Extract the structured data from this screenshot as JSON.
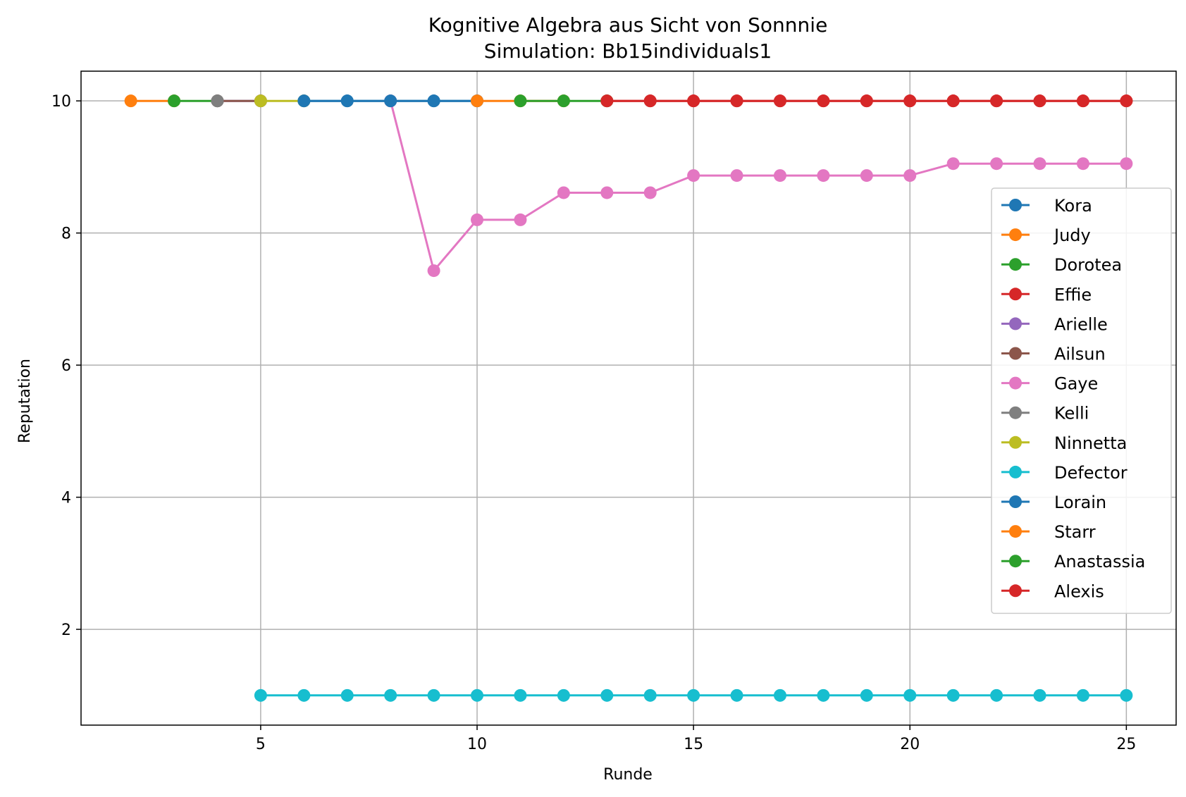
{
  "chart_data": {
    "type": "line",
    "title": "Kognitive Algebra aus Sicht von Sonnnie",
    "subtitle": "Simulation: Bb15individuals1",
    "xlabel": "Runde",
    "ylabel": "Reputation",
    "xlim": [
      0.85,
      26.15
    ],
    "ylim": [
      0.55,
      10.45
    ],
    "xticks": [
      5,
      10,
      15,
      20,
      25
    ],
    "yticks": [
      2,
      4,
      6,
      8,
      10
    ],
    "grid": true,
    "legend_position": "center-right",
    "series": [
      {
        "name": "Kora",
        "color": "#1f77b4",
        "x": [
          6,
          7,
          8,
          9,
          10
        ],
        "y": [
          10,
          10,
          10,
          10,
          10
        ]
      },
      {
        "name": "Judy",
        "color": "#ff7f0e",
        "x": [
          2,
          3
        ],
        "y": [
          10,
          10
        ]
      },
      {
        "name": "Dorotea",
        "color": "#2ca02c",
        "x": [
          3,
          4
        ],
        "y": [
          10,
          10
        ]
      },
      {
        "name": "Effie",
        "color": "#d62728",
        "x": [
          13,
          14,
          15,
          16,
          17,
          18,
          19,
          20,
          21,
          22,
          23,
          24,
          25
        ],
        "y": [
          10,
          10,
          10,
          10,
          10,
          10,
          10,
          10,
          10,
          10,
          10,
          10,
          10
        ]
      },
      {
        "name": "Arielle",
        "color": "#9467bd",
        "x": [
          4,
          5
        ],
        "y": [
          10,
          10
        ]
      },
      {
        "name": "Ailsun",
        "color": "#8c564b",
        "x": [
          4,
          5
        ],
        "y": [
          10,
          10
        ]
      },
      {
        "name": "Gaye",
        "color": "#e377c2",
        "x": [
          8,
          9,
          10,
          11,
          12,
          13,
          14,
          15,
          16,
          17,
          18,
          19,
          20,
          21,
          22,
          23,
          24,
          25
        ],
        "y": [
          10,
          7.43,
          8.2,
          8.2,
          8.61,
          8.61,
          8.61,
          8.87,
          8.87,
          8.87,
          8.87,
          8.87,
          8.87,
          9.05,
          9.05,
          9.05,
          9.05,
          9.05
        ]
      },
      {
        "name": "Kelli",
        "color": "#7f7f7f",
        "x": [
          4
        ],
        "y": [
          10
        ]
      },
      {
        "name": "Ninnetta",
        "color": "#bcbd22",
        "x": [
          5,
          6
        ],
        "y": [
          10,
          10
        ]
      },
      {
        "name": "Defector",
        "color": "#17becf",
        "x": [
          5,
          6,
          7,
          8,
          9,
          10,
          11,
          12,
          13,
          14,
          15,
          16,
          17,
          18,
          19,
          20,
          21,
          22,
          23,
          24,
          25
        ],
        "y": [
          1,
          1,
          1,
          1,
          1,
          1,
          1,
          1,
          1,
          1,
          1,
          1,
          1,
          1,
          1,
          1,
          1,
          1,
          1,
          1,
          1
        ]
      },
      {
        "name": "Lorain",
        "color": "#1f77b4",
        "x": [
          6,
          7,
          8,
          9,
          10
        ],
        "y": [
          10,
          10,
          10,
          10,
          10
        ]
      },
      {
        "name": "Starr",
        "color": "#ff7f0e",
        "x": [
          10,
          11,
          12
        ],
        "y": [
          10,
          10,
          10
        ]
      },
      {
        "name": "Anastassia",
        "color": "#2ca02c",
        "x": [
          11,
          12,
          13
        ],
        "y": [
          10,
          10,
          10
        ]
      },
      {
        "name": "Alexis",
        "color": "#d62728",
        "x": [
          13,
          14,
          15,
          16,
          17,
          18,
          19,
          20,
          21,
          22,
          23,
          24,
          25
        ],
        "y": [
          10,
          10,
          10,
          10,
          10,
          10,
          10,
          10,
          10,
          10,
          10,
          10,
          10
        ]
      }
    ]
  }
}
